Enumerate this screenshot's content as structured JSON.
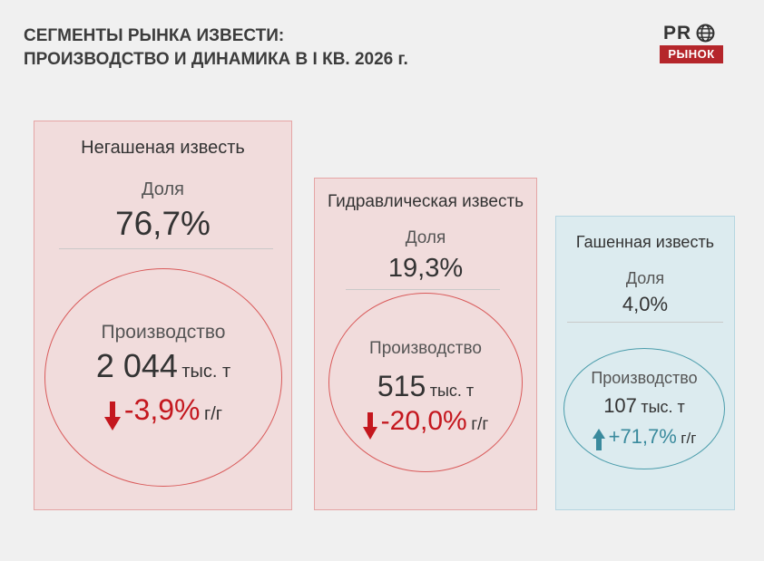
{
  "header": {
    "title_line1": "СЕГМЕНТЫ РЫНКА ИЗВЕСТИ:",
    "title_line2": "ПРОИЗВОДСТВО И ДИНАМИКА В I КВ. 2026 г."
  },
  "logo": {
    "top_text": "PR",
    "bottom_text": "РЫНОК",
    "brand_color": "#b5262b",
    "icon": "globe-icon"
  },
  "segments": [
    {
      "name": "Негашеная известь",
      "share_label": "Доля",
      "share": "76,7%",
      "production_label": "Производство",
      "production_value": "2 044",
      "production_unit": "тыс. т",
      "change": "-3,9%",
      "change_unit": "г/г",
      "change_direction": "down",
      "change_icon": "arrow-down-icon",
      "accent_color": "#c4171e"
    },
    {
      "name": "Гидравлическая известь",
      "share_label": "Доля",
      "share": "19,3%",
      "production_label": "Производство",
      "production_value": "515",
      "production_unit": "тыс. т",
      "change": "-20,0%",
      "change_unit": "г/г",
      "change_direction": "down",
      "change_icon": "arrow-down-icon",
      "accent_color": "#c4171e"
    },
    {
      "name": "Гашенная известь",
      "share_label": "Доля",
      "share": "4,0%",
      "production_label": "Производство",
      "production_value": "107",
      "production_unit": "тыс. т",
      "change": "+71,7%",
      "change_unit": "г/г",
      "change_direction": "up",
      "change_icon": "arrow-up-icon",
      "accent_color": "#3a8a9d"
    }
  ]
}
